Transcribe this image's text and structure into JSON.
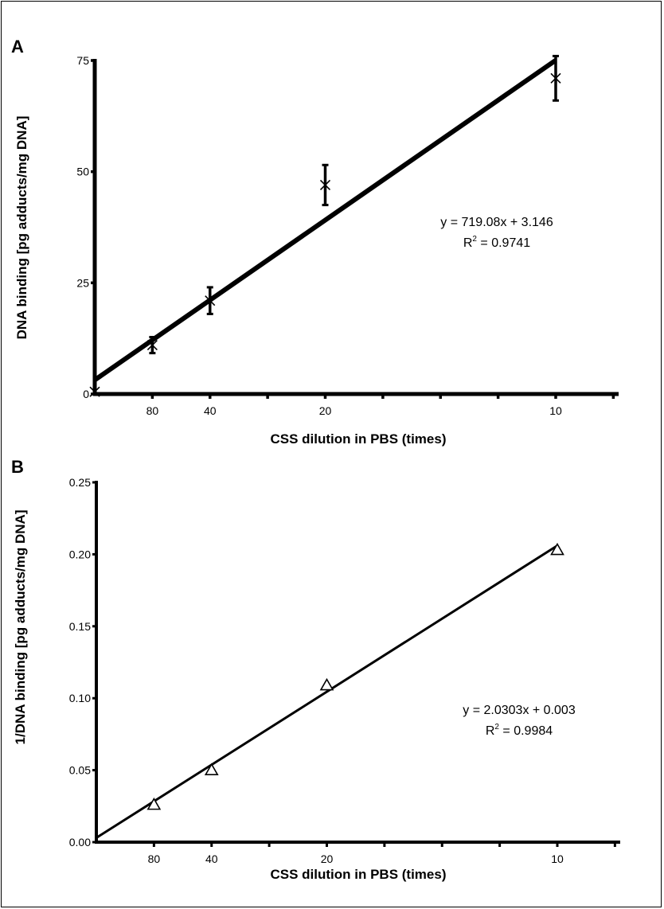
{
  "chart_data": [
    {
      "panel": "A",
      "type": "scatter",
      "xlabel": "CSS dilution in PBS (times)",
      "ylabel": "DNA binding [pg adducts/mg DNA]",
      "xlim": [
        0,
        0.1133
      ],
      "ylim": [
        0,
        75
      ],
      "y_ticks": [
        0,
        25,
        50,
        75
      ],
      "x_tick_labels": [
        {
          "x": 0.0125,
          "label": "80"
        },
        {
          "x": 0.025,
          "label": "40"
        },
        {
          "x": 0.05,
          "label": "20"
        },
        {
          "x": 0.1,
          "label": "10"
        }
      ],
      "x_minor_ticks": [
        0.0375,
        0.0625,
        0.075,
        0.0875,
        0.1125
      ],
      "marker": "x",
      "points": [
        {
          "x": 0.0,
          "y": 0.5,
          "err": 0
        },
        {
          "x": 0.0125,
          "y": 11,
          "err": 1.8
        },
        {
          "x": 0.025,
          "y": 21,
          "err": 3
        },
        {
          "x": 0.05,
          "y": 47,
          "err": 4.5
        },
        {
          "x": 0.1,
          "y": 71,
          "err": 5
        }
      ],
      "fit": {
        "slope": 719.08,
        "intercept": 3.146,
        "x_range": [
          0,
          0.1
        ]
      },
      "equation": "y = 719.08x + 3.146",
      "r2_label": "R",
      "r2_sup": "2",
      "r2_value": " = 0.9741"
    },
    {
      "panel": "B",
      "type": "scatter",
      "xlabel": "CSS dilution in PBS (times)",
      "ylabel": "1/DNA binding [pg adducts/mg DNA]",
      "xlim": [
        0,
        0.1133
      ],
      "ylim": [
        0,
        0.25
      ],
      "y_ticks": [
        "0.00",
        "0.05",
        "0.10",
        "0.15",
        "0.20",
        "0.25"
      ],
      "x_tick_labels": [
        {
          "x": 0.0125,
          "label": "80"
        },
        {
          "x": 0.025,
          "label": "40"
        },
        {
          "x": 0.05,
          "label": "20"
        },
        {
          "x": 0.1,
          "label": "10"
        }
      ],
      "x_minor_ticks": [
        0.0375,
        0.0625,
        0.075,
        0.0875,
        0.1125
      ],
      "marker": "triangle-open",
      "points": [
        {
          "x": 0.0125,
          "y": 0.026
        },
        {
          "x": 0.025,
          "y": 0.05
        },
        {
          "x": 0.05,
          "y": 0.109
        },
        {
          "x": 0.1,
          "y": 0.203
        }
      ],
      "fit": {
        "slope": 2.0303,
        "intercept": 0.003,
        "x_range": [
          0,
          0.1
        ]
      },
      "equation": "y = 2.0303x + 0.003",
      "r2_label": "R",
      "r2_sup": "2",
      "r2_value": " = 0.9984"
    }
  ]
}
